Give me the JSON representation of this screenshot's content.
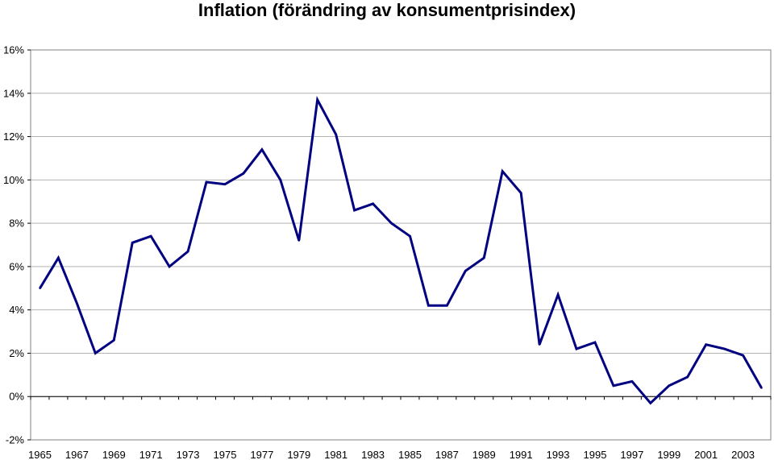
{
  "chart_data": {
    "type": "line",
    "title": "Inflation (förändring av konsumentprisindex)",
    "xlabel": "",
    "ylabel": "",
    "x": [
      1965,
      1966,
      1967,
      1968,
      1969,
      1970,
      1971,
      1972,
      1973,
      1974,
      1975,
      1976,
      1977,
      1978,
      1979,
      1980,
      1981,
      1982,
      1983,
      1984,
      1985,
      1986,
      1987,
      1988,
      1989,
      1990,
      1991,
      1992,
      1993,
      1994,
      1995,
      1996,
      1997,
      1998,
      1999,
      2000,
      2001,
      2002,
      2003,
      2004
    ],
    "series": [
      {
        "name": "",
        "color": "#000080",
        "values": [
          5.0,
          6.4,
          4.3,
          2.0,
          2.6,
          7.1,
          7.4,
          6.0,
          6.7,
          9.9,
          9.8,
          10.3,
          11.4,
          10.0,
          7.2,
          13.7,
          12.1,
          8.6,
          8.9,
          8.0,
          7.4,
          4.2,
          4.2,
          5.8,
          6.4,
          10.4,
          9.4,
          2.4,
          4.7,
          2.2,
          2.5,
          0.5,
          0.7,
          -0.3,
          0.5,
          0.9,
          2.4,
          2.2,
          1.9,
          0.4
        ]
      }
    ],
    "x_tick_labels": [
      "1965",
      "1967",
      "1969",
      "1971",
      "1973",
      "1975",
      "1977",
      "1979",
      "1981",
      "1983",
      "1985",
      "1987",
      "1989",
      "1991",
      "1993",
      "1995",
      "1997",
      "1999",
      "2001",
      "2003"
    ],
    "y_tick_labels": [
      "16%",
      "14%",
      "12%",
      "10%",
      "8%",
      "6%",
      "4%",
      "2%",
      "0%",
      "-2%"
    ],
    "ylim": [
      -2,
      16
    ],
    "xlim": [
      1964.5,
      2004.5
    ],
    "grid": true,
    "legend": "none"
  }
}
